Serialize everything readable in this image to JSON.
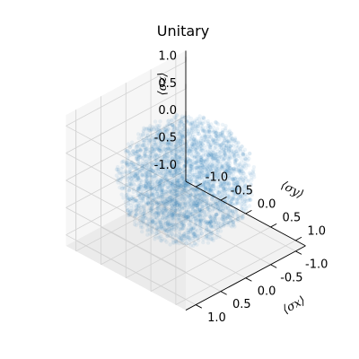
{
  "chart_data": {
    "type": "scatter",
    "title": "Unitary",
    "xlabel": "⟨σx⟩",
    "ylabel": "⟨σy⟩",
    "zlabel": "⟨σz⟩",
    "xlim": [
      -1.2,
      1.2
    ],
    "ylim": [
      -1.2,
      1.2
    ],
    "zlim": [
      -1.2,
      1.2
    ],
    "xticks": [
      "-1.0",
      "-0.5",
      "0.0",
      "0.5",
      "1.0"
    ],
    "yticks": [
      "-1.0",
      "-0.5",
      "0.0",
      "0.5",
      "1.0"
    ],
    "zticks": [
      "-1.0",
      "-0.5",
      "0.0",
      "0.5",
      "1.0"
    ],
    "xtick_values": [
      -1.0,
      -0.5,
      0.0,
      0.5,
      1.0
    ],
    "ytick_values": [
      -1.0,
      -0.5,
      0.0,
      0.5,
      1.0
    ],
    "ztick_values": [
      -1.0,
      -0.5,
      0.0,
      0.5,
      1.0
    ],
    "grid": true,
    "marker_color": "#1f77b4",
    "marker_alpha": 0.08,
    "distribution": "points filling the unit ball (Bloch ball), densest near the center",
    "approx_radius": 1.0
  }
}
